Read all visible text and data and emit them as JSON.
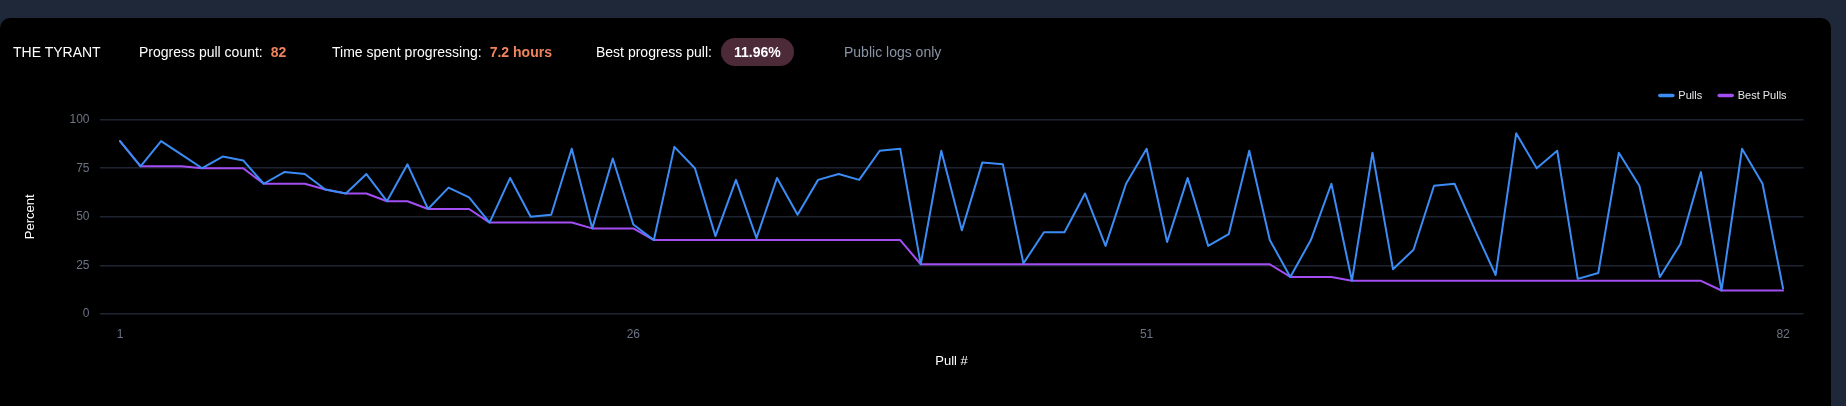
{
  "chart_data": {
    "type": "line",
    "title": "THE TYRANT",
    "annotations": [
      "Progress pull count: 82",
      "Time spent progressing: 7.2 hours",
      "Best progress pull: 11.96%",
      "Public logs only"
    ],
    "xlabel": "Pull #",
    "ylabel": "Percent",
    "x": [
      1,
      2,
      3,
      4,
      5,
      6,
      7,
      8,
      9,
      10,
      11,
      12,
      13,
      14,
      15,
      16,
      17,
      18,
      19,
      20,
      21,
      22,
      23,
      24,
      25,
      26,
      27,
      28,
      29,
      30,
      31,
      32,
      33,
      34,
      35,
      36,
      37,
      38,
      39,
      40,
      41,
      42,
      43,
      44,
      45,
      46,
      47,
      48,
      49,
      50,
      51,
      52,
      53,
      54,
      55,
      56,
      57,
      58,
      59,
      60,
      61,
      62,
      63,
      64,
      65,
      66,
      67,
      68,
      69,
      70,
      71,
      72,
      73,
      74,
      75,
      76,
      77,
      78,
      79,
      80,
      81,
      82
    ],
    "xlim": [
      0,
      83
    ],
    "xticks": [
      1,
      26,
      51,
      82
    ],
    "ylim": [
      0,
      100
    ],
    "yticks": [
      0,
      25,
      50,
      75,
      100
    ],
    "series": [
      {
        "name": "Pulls",
        "color": "#3b8cf5",
        "values": [
          89,
          76,
          89,
          82,
          75,
          81,
          79,
          67,
          73,
          72,
          64,
          62,
          72,
          58,
          77,
          54,
          65,
          60,
          47,
          70,
          50,
          51,
          85,
          44,
          80,
          46,
          38,
          86,
          75,
          40,
          69,
          39,
          70,
          51,
          69,
          72,
          69,
          84,
          85,
          25.5,
          84,
          43,
          78,
          77,
          26,
          42,
          42,
          62,
          35,
          67,
          85,
          37,
          70,
          35,
          41,
          84,
          38,
          19,
          38,
          67,
          17,
          83,
          23,
          33,
          66,
          67,
          43,
          20,
          93,
          75,
          84,
          18,
          21,
          83,
          66,
          19,
          36,
          73,
          12,
          85,
          67,
          13
        ]
      },
      {
        "name": "Best Pulls",
        "color": "#a24ef3",
        "values": [
          89,
          76,
          76,
          76,
          75,
          75,
          75,
          67,
          67,
          67,
          64,
          62,
          62,
          58,
          58,
          54,
          54,
          54,
          47,
          47,
          47,
          47,
          47,
          44,
          44,
          44,
          38,
          38,
          38,
          38,
          38,
          38,
          38,
          38,
          38,
          38,
          38,
          38,
          38,
          25.5,
          25.5,
          25.5,
          25.5,
          25.5,
          25.5,
          25.5,
          25.5,
          25.5,
          25.5,
          25.5,
          25.5,
          25.5,
          25.5,
          25.5,
          25.5,
          25.5,
          25.5,
          19,
          19,
          19,
          17,
          17,
          17,
          17,
          17,
          17,
          17,
          17,
          17,
          17,
          17,
          17,
          17,
          17,
          17,
          17,
          17,
          17,
          12,
          12,
          12,
          12
        ]
      }
    ],
    "grid": "y",
    "legend": "top right",
    "marker": "none",
    "line_style": "solid"
  }
}
